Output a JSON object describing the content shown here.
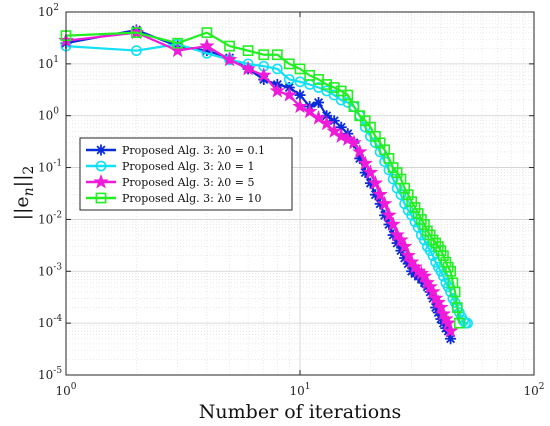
{
  "chart_data": {
    "type": "line",
    "title": "",
    "xlabel": "Number of iterations",
    "ylabel": "||e_n||_2",
    "xscale": "log",
    "yscale": "log",
    "xlim": [
      1,
      100
    ],
    "ylim": [
      1e-05,
      100
    ],
    "grid": true,
    "legend_position": "center-left",
    "x_ticks": [
      {
        "value": 1,
        "base": "10",
        "exp": "0"
      },
      {
        "value": 10,
        "base": "10",
        "exp": "1"
      },
      {
        "value": 100,
        "base": "10",
        "exp": "2"
      }
    ],
    "y_ticks": [
      {
        "value": 1e-05,
        "base": "10",
        "exp": "-5"
      },
      {
        "value": 0.0001,
        "base": "10",
        "exp": "-4"
      },
      {
        "value": 0.001,
        "base": "10",
        "exp": "-3"
      },
      {
        "value": 0.01,
        "base": "10",
        "exp": "-2"
      },
      {
        "value": 0.1,
        "base": "10",
        "exp": "-1"
      },
      {
        "value": 1,
        "base": "10",
        "exp": "0"
      },
      {
        "value": 10,
        "base": "10",
        "exp": "1"
      },
      {
        "value": 100,
        "base": "10",
        "exp": "2"
      }
    ],
    "series": [
      {
        "name": "Proposed Alg. 3: λ0 = 0.1",
        "color": "#0a2bd9",
        "marker": "asterisk",
        "x": [
          1,
          2,
          3,
          4,
          5,
          6,
          7,
          8,
          9,
          10,
          11,
          12,
          13,
          14,
          15,
          16,
          17,
          18,
          19,
          20,
          21,
          22,
          23,
          24,
          25,
          26,
          27,
          28,
          29,
          30,
          31,
          32,
          33,
          34,
          35,
          36,
          37,
          38,
          39,
          40,
          41,
          42,
          43,
          44
        ],
        "y": [
          25,
          45,
          22,
          18,
          13,
          8,
          5,
          4,
          3.5,
          2.5,
          1.5,
          1.8,
          1.0,
          0.8,
          0.6,
          0.45,
          0.3,
          0.15,
          0.08,
          0.05,
          0.03,
          0.02,
          0.012,
          0.008,
          0.005,
          0.0035,
          0.0025,
          0.0018,
          0.0014,
          0.001,
          0.0009,
          0.0008,
          0.0007,
          0.0006,
          0.0005,
          0.0004,
          0.0003,
          0.0002,
          0.00016,
          0.00012,
          0.0001,
          8e-05,
          7e-05,
          5e-05
        ]
      },
      {
        "name": "Proposed Alg. 3: λ0 = 1",
        "color": "#11e0f5",
        "marker": "circle",
        "x": [
          1,
          2,
          3,
          4,
          5,
          6,
          7,
          8,
          9,
          10,
          11,
          12,
          13,
          14,
          15,
          16,
          17,
          18,
          19,
          20,
          21,
          22,
          23,
          24,
          25,
          26,
          27,
          28,
          29,
          30,
          31,
          32,
          33,
          34,
          35,
          36,
          37,
          38,
          39,
          40,
          41,
          42,
          43,
          44,
          45,
          46,
          47,
          48,
          49,
          50,
          51,
          52
        ],
        "y": [
          22,
          18,
          24,
          16,
          12,
          10,
          9,
          8,
          5,
          4.5,
          4,
          3.5,
          3,
          2.5,
          2,
          1.8,
          1.5,
          1.0,
          0.6,
          0.4,
          0.3,
          0.2,
          0.13,
          0.09,
          0.06,
          0.04,
          0.03,
          0.02,
          0.015,
          0.012,
          0.009,
          0.007,
          0.005,
          0.004,
          0.003,
          0.0025,
          0.002,
          0.0015,
          0.0012,
          0.001,
          0.0008,
          0.0006,
          0.0005,
          0.0004,
          0.0003,
          0.00025,
          0.0002,
          0.00016,
          0.00013,
          0.00011,
          0.0001,
          0.0001
        ]
      },
      {
        "name": "Proposed Alg. 3: λ0 = 5",
        "color": "#f01ad9",
        "marker": "star",
        "x": [
          1,
          2,
          3,
          4,
          5,
          6,
          7,
          8,
          9,
          10,
          11,
          12,
          13,
          14,
          15,
          16,
          17,
          18,
          19,
          20,
          21,
          22,
          23,
          24,
          25,
          26,
          27,
          28,
          29,
          30,
          31,
          32,
          33,
          34,
          35,
          36,
          37,
          38,
          39,
          40,
          41,
          42,
          43,
          44
        ],
        "y": [
          28,
          40,
          18,
          22,
          12,
          8,
          6,
          3,
          2.5,
          1.5,
          1.2,
          0.9,
          0.7,
          0.5,
          0.4,
          0.35,
          0.3,
          0.2,
          0.12,
          0.08,
          0.05,
          0.03,
          0.02,
          0.012,
          0.008,
          0.005,
          0.004,
          0.003,
          0.002,
          0.0015,
          0.0012,
          0.001,
          0.0009,
          0.0008,
          0.0006,
          0.0005,
          0.0004,
          0.0003,
          0.00025,
          0.0002,
          0.00015,
          0.00012,
          0.0001,
          7e-05
        ]
      },
      {
        "name": "Proposed Alg. 3: λ0 = 10",
        "color": "#22ee22",
        "marker": "square",
        "x": [
          1,
          2,
          3,
          4,
          5,
          6,
          7,
          8,
          9,
          10,
          11,
          12,
          13,
          14,
          15,
          16,
          17,
          18,
          19,
          20,
          21,
          22,
          23,
          24,
          25,
          26,
          27,
          28,
          29,
          30,
          31,
          32,
          33,
          34,
          35,
          36,
          37,
          38,
          39,
          40,
          41,
          42,
          43,
          44,
          45,
          46,
          47,
          48
        ],
        "y": [
          35,
          40,
          25,
          40,
          22,
          18,
          15,
          15,
          10,
          8,
          6,
          5,
          4,
          3.5,
          3,
          2.5,
          1.5,
          1.0,
          0.8,
          0.6,
          0.4,
          0.3,
          0.22,
          0.15,
          0.1,
          0.08,
          0.06,
          0.04,
          0.03,
          0.022,
          0.017,
          0.013,
          0.01,
          0.008,
          0.006,
          0.005,
          0.004,
          0.0035,
          0.003,
          0.0025,
          0.002,
          0.0015,
          0.0012,
          0.001,
          0.0006,
          0.0004,
          0.0002,
          0.0001
        ]
      }
    ]
  }
}
